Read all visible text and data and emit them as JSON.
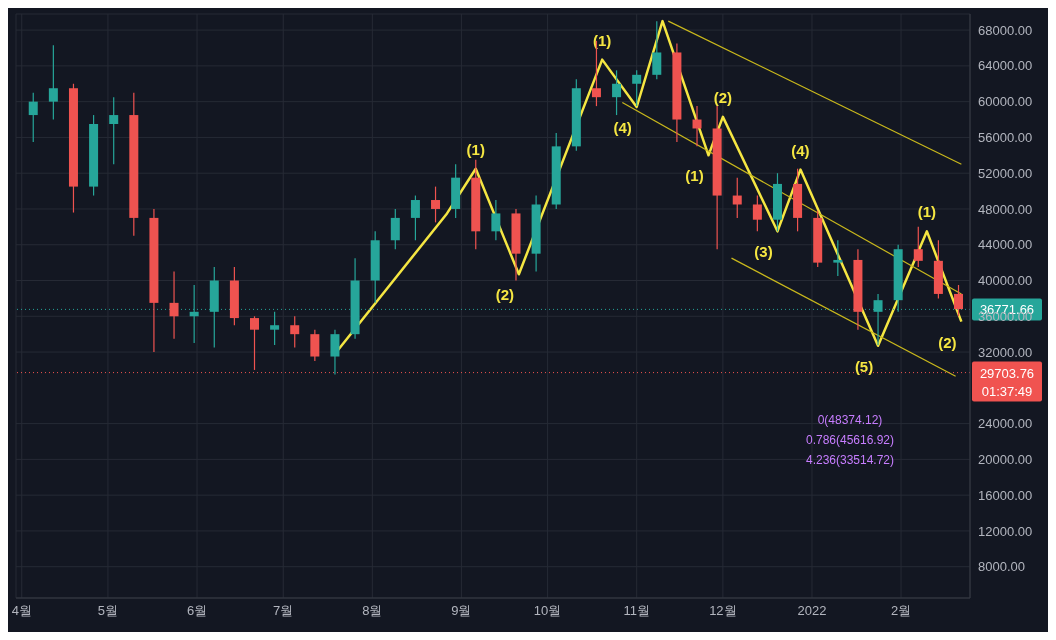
{
  "chart_data": {
    "type": "candlestick",
    "x": [
      "2021-04-05",
      "2021-04-12",
      "2021-04-19",
      "2021-04-26",
      "2021-05-03",
      "2021-05-10",
      "2021-05-17",
      "2021-05-24",
      "2021-05-31",
      "2021-06-07",
      "2021-06-14",
      "2021-06-21",
      "2021-06-28",
      "2021-07-05",
      "2021-07-12",
      "2021-07-19",
      "2021-07-26",
      "2021-08-02",
      "2021-08-09",
      "2021-08-16",
      "2021-08-23",
      "2021-08-30",
      "2021-09-06",
      "2021-09-13",
      "2021-09-20",
      "2021-09-27",
      "2021-10-04",
      "2021-10-11",
      "2021-10-18",
      "2021-10-25",
      "2021-11-01",
      "2021-11-08",
      "2021-11-15",
      "2021-11-22",
      "2021-11-29",
      "2021-12-06",
      "2021-12-13",
      "2021-12-20",
      "2021-12-27",
      "2022-01-03",
      "2022-01-10",
      "2022-01-17",
      "2022-01-24",
      "2022-01-31",
      "2022-02-07",
      "2022-02-14",
      "2022-02-21"
    ],
    "ohlc": [
      [
        58500,
        61000,
        55500,
        60000
      ],
      [
        60000,
        66300,
        58000,
        61500
      ],
      [
        61500,
        62000,
        47600,
        50500
      ],
      [
        50500,
        58500,
        49500,
        57500
      ],
      [
        57500,
        60500,
        53000,
        58500
      ],
      [
        58500,
        61000,
        45000,
        47000
      ],
      [
        47000,
        48000,
        32000,
        37500
      ],
      [
        37500,
        41000,
        33500,
        36000
      ],
      [
        36000,
        39500,
        33000,
        36500
      ],
      [
        36500,
        41500,
        32500,
        40000
      ],
      [
        40000,
        41500,
        35000,
        35800
      ],
      [
        35800,
        36000,
        30000,
        34500
      ],
      [
        34500,
        36500,
        32800,
        35000
      ],
      [
        35000,
        36000,
        32500,
        34000
      ],
      [
        34000,
        34500,
        31000,
        31500
      ],
      [
        31500,
        34500,
        29500,
        34000
      ],
      [
        34000,
        42500,
        33500,
        40000
      ],
      [
        40000,
        45500,
        37500,
        44500
      ],
      [
        44500,
        48000,
        43500,
        47000
      ],
      [
        47000,
        49500,
        44500,
        49000
      ],
      [
        49000,
        50500,
        46500,
        48000
      ],
      [
        48000,
        53000,
        47000,
        51500
      ],
      [
        51500,
        53500,
        43500,
        45500
      ],
      [
        45500,
        49000,
        44500,
        47500
      ],
      [
        47500,
        48000,
        40000,
        43000
      ],
      [
        43000,
        49500,
        41000,
        48500
      ],
      [
        48500,
        56500,
        48000,
        55000
      ],
      [
        55000,
        62500,
        54500,
        61500
      ],
      [
        61500,
        66800,
        59500,
        60500
      ],
      [
        60500,
        63500,
        58500,
        62000
      ],
      [
        62000,
        63500,
        59500,
        63000
      ],
      [
        63000,
        69000,
        62500,
        65500
      ],
      [
        65500,
        66500,
        55500,
        58000
      ],
      [
        58000,
        59500,
        55000,
        57000
      ],
      [
        57000,
        59500,
        43500,
        49500
      ],
      [
        49500,
        51500,
        47000,
        48500
      ],
      [
        48500,
        49500,
        45500,
        46800
      ],
      [
        46800,
        52000,
        45500,
        50800
      ],
      [
        50800,
        52500,
        45500,
        47000
      ],
      [
        47000,
        47800,
        41500,
        42000
      ],
      [
        42000,
        44500,
        40500,
        42300
      ],
      [
        42300,
        43500,
        34500,
        36500
      ],
      [
        36500,
        38500,
        32800,
        37800
      ],
      [
        37800,
        44000,
        36500,
        43500
      ],
      [
        43500,
        46000,
        41500,
        42200
      ],
      [
        42200,
        44500,
        38000,
        38500
      ],
      [
        38500,
        39500,
        36000,
        36800
      ]
    ],
    "series": [
      {
        "type": "line",
        "color": "#f5e642",
        "x": [
          "2021-07-20",
          "2021-08-27",
          "2021-09-06",
          "2021-09-21",
          "2021-10-20",
          "2021-11-01",
          "2021-11-10",
          "2021-11-26",
          "2021-12-01",
          "2021-12-20",
          "2021-12-28",
          "2022-01-24",
          "2022-02-10",
          "2022-02-22"
        ],
        "values": [
          32200,
          47500,
          52500,
          40700,
          64700,
          59400,
          69000,
          54000,
          58300,
          45500,
          52400,
          32700,
          45500,
          35400
        ]
      },
      {
        "type": "line",
        "color": "#c9b81c",
        "x": [
          "2021-11-12",
          "2022-02-22"
        ],
        "values": [
          69000,
          53000
        ]
      },
      {
        "type": "line",
        "color": "#c9b81c",
        "x": [
          "2021-10-27",
          "2022-02-22"
        ],
        "values": [
          59900,
          38500
        ]
      },
      {
        "type": "line",
        "color": "#c9b81c",
        "x": [
          "2021-12-04",
          "2022-02-20"
        ],
        "values": [
          42500,
          29300
        ]
      }
    ],
    "xlim": [
      "2021-03-30",
      "2022-02-25"
    ],
    "xticks": [
      {
        "value": "2021-04-01",
        "label": "4월"
      },
      {
        "value": "2021-05-01",
        "label": "5월"
      },
      {
        "value": "2021-06-01",
        "label": "6월"
      },
      {
        "value": "2021-07-01",
        "label": "7월"
      },
      {
        "value": "2021-08-01",
        "label": "8월"
      },
      {
        "value": "2021-09-01",
        "label": "9월"
      },
      {
        "value": "2021-10-01",
        "label": "10월"
      },
      {
        "value": "2021-11-01",
        "label": "11월"
      },
      {
        "value": "2021-12-01",
        "label": "12월"
      },
      {
        "value": "2022-01-01",
        "label": "2022"
      },
      {
        "value": "2022-02-01",
        "label": "2월"
      }
    ],
    "ylim": [
      4500,
      69800
    ],
    "yticks": [
      {
        "value": 8000,
        "label": "8000.00"
      },
      {
        "value": 12000,
        "label": "12000.00"
      },
      {
        "value": 16000,
        "label": "16000.00"
      },
      {
        "value": 20000,
        "label": "20000.00"
      },
      {
        "value": 24000,
        "label": "24000.00"
      },
      {
        "value": 32000,
        "label": "32000.00"
      },
      {
        "value": 36000,
        "label": "36000.00"
      },
      {
        "value": 40000,
        "label": "40000.00"
      },
      {
        "value": 44000,
        "label": "44000.00"
      },
      {
        "value": 48000,
        "label": "48000.00"
      },
      {
        "value": 52000,
        "label": "52000.00"
      },
      {
        "value": 56000,
        "label": "56000.00"
      },
      {
        "value": 60000,
        "label": "60000.00"
      },
      {
        "value": 64000,
        "label": "64000.00"
      },
      {
        "value": 68000,
        "label": "68000.00"
      }
    ],
    "grid": true,
    "ref_lines": [
      {
        "axis": "y",
        "value": 29703.76,
        "label": "29703.76",
        "color": "#f05350",
        "line_style": "dotted"
      },
      {
        "axis": "y",
        "value": 36771.66,
        "label": "36771.66",
        "color": "#26a69a",
        "line_style": "dotted"
      }
    ],
    "annotations": [
      {
        "text": "(1)",
        "x": "2021-09-06",
        "y": 52500
      },
      {
        "text": "(2)",
        "x": "2021-09-21",
        "y": 40700
      },
      {
        "text": "(1)",
        "x": "2021-10-20",
        "y": 64700
      },
      {
        "text": "(4)",
        "x": "2021-11-01",
        "y": 59400
      },
      {
        "text": "(1)",
        "x": "2021-11-26",
        "y": 54000
      },
      {
        "text": "(2)",
        "x": "2021-12-01",
        "y": 58300
      },
      {
        "text": "(3)",
        "x": "2021-12-20",
        "y": 45500
      },
      {
        "text": "(4)",
        "x": "2021-12-28",
        "y": 52400
      },
      {
        "text": "(5)",
        "x": "2022-01-24",
        "y": 32700
      },
      {
        "text": "(1)",
        "x": "2022-02-10",
        "y": 45500
      },
      {
        "text": "(2)",
        "x": "2022-02-22",
        "y": 35400
      },
      "01:37:49",
      "0(48374.12)",
      "0.786(45616.92)",
      "4.236(33514.72)"
    ]
  }
}
